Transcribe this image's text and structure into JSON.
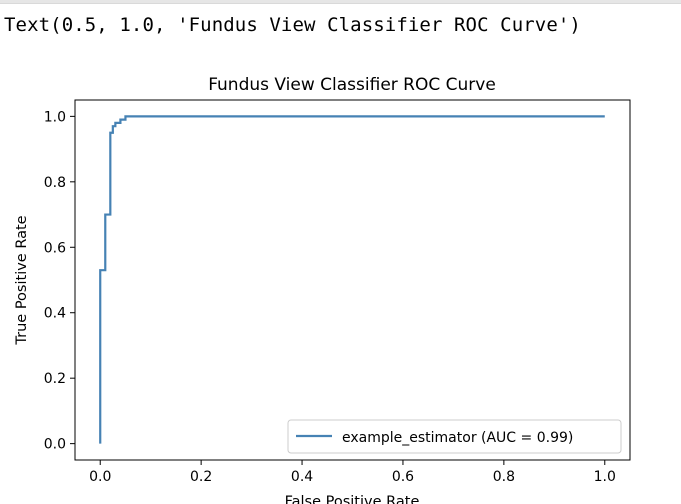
{
  "cell_output": {
    "text": "Text(0.5, 1.0, 'Fundus View Classifier ROC Curve')"
  },
  "chart_data": {
    "type": "line",
    "title": "Fundus View Classifier ROC Curve",
    "xlabel": "False Positive Rate",
    "ylabel": "True Positive Rate",
    "xlim": [
      -0.05,
      1.05
    ],
    "ylim": [
      -0.05,
      1.05
    ],
    "xticks": [
      "0.0",
      "0.2",
      "0.4",
      "0.6",
      "0.8",
      "1.0"
    ],
    "yticks": [
      "0.0",
      "0.2",
      "0.4",
      "0.6",
      "0.8",
      "1.0"
    ],
    "grid": false,
    "legend_position": "lower right",
    "series": [
      {
        "name": "example_estimator (AUC = 0.99)",
        "color": "#4682b4",
        "x": [
          0.0,
          0.0,
          0.0,
          0.01,
          0.01,
          0.02,
          0.02,
          0.025,
          0.025,
          0.03,
          0.03,
          0.04,
          0.04,
          0.05,
          0.05,
          1.0
        ],
        "y": [
          0.0,
          0.53,
          0.53,
          0.53,
          0.7,
          0.7,
          0.95,
          0.95,
          0.97,
          0.97,
          0.98,
          0.98,
          0.99,
          0.99,
          1.0,
          1.0
        ]
      }
    ]
  }
}
